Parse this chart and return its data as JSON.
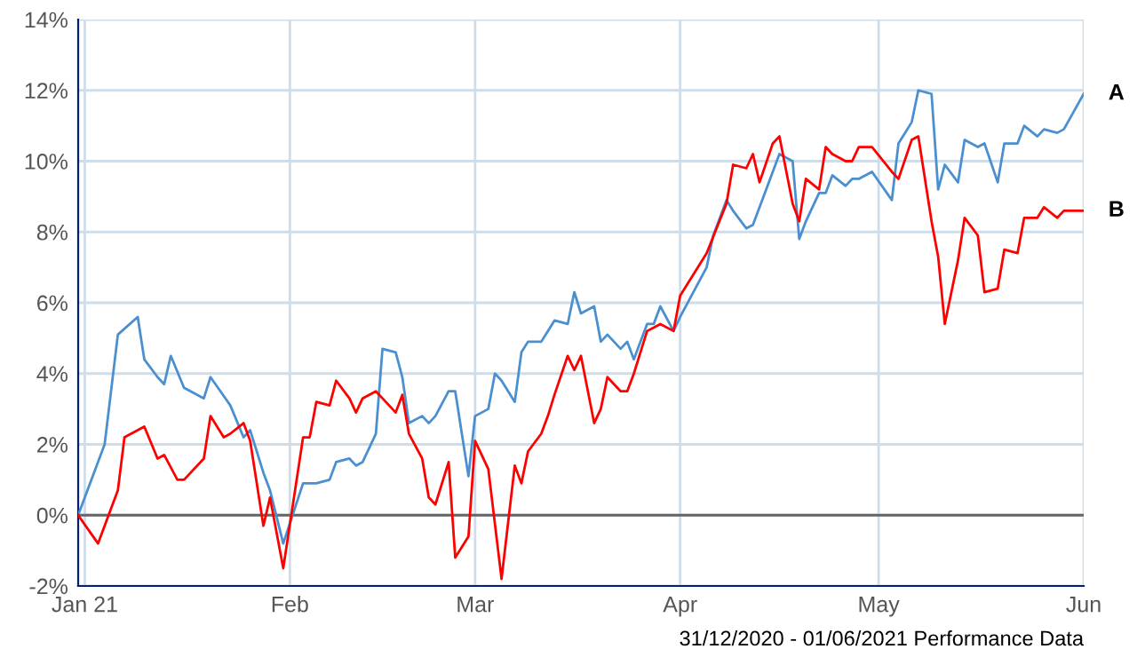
{
  "chart_data": {
    "type": "line",
    "annotations": [
      "31/12/2020 - 01/06/2021 Performance Data"
    ],
    "series": [
      {
        "name": "A",
        "color": "#4a8fd0",
        "x": [
          "2020-12-31",
          "2021-01-04",
          "2021-01-06",
          "2021-01-09",
          "2021-01-10",
          "2021-01-12",
          "2021-01-13",
          "2021-01-14",
          "2021-01-16",
          "2021-01-19",
          "2021-01-20",
          "2021-01-23",
          "2021-01-25",
          "2021-01-26",
          "2021-01-28",
          "2021-01-29",
          "2021-01-31",
          "2021-02-03",
          "2021-02-05",
          "2021-02-07",
          "2021-02-08",
          "2021-02-10",
          "2021-02-11",
          "2021-02-12",
          "2021-02-14",
          "2021-02-15",
          "2021-02-17",
          "2021-02-18",
          "2021-02-19",
          "2021-02-21",
          "2021-02-22",
          "2021-02-23",
          "2021-02-25",
          "2021-02-26",
          "2021-02-28",
          "2021-03-01",
          "2021-03-03",
          "2021-03-04",
          "2021-03-05",
          "2021-03-07",
          "2021-03-08",
          "2021-03-09",
          "2021-03-11",
          "2021-03-12",
          "2021-03-13",
          "2021-03-15",
          "2021-03-16",
          "2021-03-17",
          "2021-03-19",
          "2021-03-20",
          "2021-03-21",
          "2021-03-23",
          "2021-03-24",
          "2021-03-25",
          "2021-03-27",
          "2021-03-28",
          "2021-03-29",
          "2021-03-31",
          "2021-04-01",
          "2021-04-05",
          "2021-04-06",
          "2021-04-08",
          "2021-04-09",
          "2021-04-11",
          "2021-04-12",
          "2021-04-14",
          "2021-04-16",
          "2021-04-18",
          "2021-04-19",
          "2021-04-20",
          "2021-04-22",
          "2021-04-23",
          "2021-04-24",
          "2021-04-26",
          "2021-04-27",
          "2021-04-28",
          "2021-04-30",
          "2021-05-03",
          "2021-05-04",
          "2021-05-06",
          "2021-05-07",
          "2021-05-09",
          "2021-05-10",
          "2021-05-11",
          "2021-05-13",
          "2021-05-14",
          "2021-05-16",
          "2021-05-17",
          "2021-05-19",
          "2021-05-20",
          "2021-05-22",
          "2021-05-23",
          "2021-05-25",
          "2021-05-26",
          "2021-05-28",
          "2021-05-29",
          "2021-06-01"
        ],
        "values": [
          0,
          2.0,
          5.1,
          5.6,
          4.4,
          3.9,
          3.7,
          4.5,
          3.6,
          3.3,
          3.9,
          3.1,
          2.2,
          2.4,
          1.2,
          0.7,
          -0.8,
          0.9,
          0.9,
          1.0,
          1.5,
          1.6,
          1.4,
          1.5,
          2.3,
          4.7,
          4.6,
          3.9,
          2.6,
          2.8,
          2.6,
          2.8,
          3.5,
          3.5,
          1.1,
          2.8,
          3.0,
          4.0,
          3.8,
          3.2,
          4.6,
          4.9,
          4.9,
          5.2,
          5.5,
          5.4,
          6.3,
          5.7,
          5.9,
          4.9,
          5.1,
          4.7,
          4.9,
          4.4,
          5.4,
          5.4,
          5.9,
          5.2,
          5.6,
          7.0,
          7.9,
          8.9,
          8.6,
          8.1,
          8.2,
          9.2,
          10.2,
          10.0,
          7.8,
          8.3,
          9.1,
          9.1,
          9.6,
          9.3,
          9.5,
          9.5,
          9.7,
          8.9,
          10.5,
          11.1,
          12.0,
          11.9,
          9.2,
          9.9,
          9.4,
          10.6,
          10.4,
          10.5,
          9.4,
          10.5,
          10.5,
          11.0,
          10.7,
          10.9,
          10.8,
          10.9,
          11.9
        ]
      },
      {
        "name": "B",
        "color": "#ff0000",
        "x": [
          "2020-12-31",
          "2021-01-03",
          "2021-01-04",
          "2021-01-06",
          "2021-01-07",
          "2021-01-09",
          "2021-01-10",
          "2021-01-12",
          "2021-01-13",
          "2021-01-15",
          "2021-01-16",
          "2021-01-19",
          "2021-01-20",
          "2021-01-22",
          "2021-01-23",
          "2021-01-25",
          "2021-01-26",
          "2021-01-28",
          "2021-01-29",
          "2021-01-31",
          "2021-02-03",
          "2021-02-04",
          "2021-02-05",
          "2021-02-07",
          "2021-02-08",
          "2021-02-10",
          "2021-02-11",
          "2021-02-12",
          "2021-02-14",
          "2021-02-15",
          "2021-02-17",
          "2021-02-18",
          "2021-02-19",
          "2021-02-21",
          "2021-02-22",
          "2021-02-23",
          "2021-02-25",
          "2021-02-26",
          "2021-02-28",
          "2021-03-01",
          "2021-03-03",
          "2021-03-05",
          "2021-03-07",
          "2021-03-08",
          "2021-03-09",
          "2021-03-11",
          "2021-03-12",
          "2021-03-13",
          "2021-03-15",
          "2021-03-16",
          "2021-03-17",
          "2021-03-19",
          "2021-03-20",
          "2021-03-21",
          "2021-03-23",
          "2021-03-24",
          "2021-03-25",
          "2021-03-27",
          "2021-03-28",
          "2021-03-29",
          "2021-03-31",
          "2021-04-01",
          "2021-04-05",
          "2021-04-08",
          "2021-04-09",
          "2021-04-11",
          "2021-04-12",
          "2021-04-13",
          "2021-04-15",
          "2021-04-16",
          "2021-04-18",
          "2021-04-19",
          "2021-04-20",
          "2021-04-22",
          "2021-04-23",
          "2021-04-24",
          "2021-04-26",
          "2021-04-27",
          "2021-04-28",
          "2021-04-30",
          "2021-05-03",
          "2021-05-04",
          "2021-05-06",
          "2021-05-07",
          "2021-05-09",
          "2021-05-10",
          "2021-05-11",
          "2021-05-13",
          "2021-05-14",
          "2021-05-16",
          "2021-05-17",
          "2021-05-19",
          "2021-05-20",
          "2021-05-22",
          "2021-05-23",
          "2021-05-25",
          "2021-05-26",
          "2021-05-28",
          "2021-05-29",
          "2021-06-01"
        ],
        "values": [
          0,
          -0.8,
          -0.3,
          0.7,
          2.2,
          2.4,
          2.5,
          1.6,
          1.7,
          1.0,
          1.0,
          1.6,
          2.8,
          2.2,
          2.3,
          2.6,
          2.1,
          -0.3,
          0.5,
          -1.5,
          2.2,
          2.2,
          3.2,
          3.1,
          3.8,
          3.3,
          2.9,
          3.3,
          3.5,
          3.3,
          2.9,
          3.4,
          2.3,
          1.6,
          0.5,
          0.3,
          1.5,
          -1.2,
          -0.6,
          2.1,
          1.3,
          -1.8,
          1.4,
          0.9,
          1.8,
          2.3,
          2.8,
          3.4,
          4.5,
          4.1,
          4.5,
          2.6,
          3.0,
          3.9,
          3.5,
          3.5,
          4.0,
          5.2,
          5.3,
          5.4,
          5.2,
          6.2,
          7.4,
          8.8,
          9.9,
          9.8,
          10.2,
          9.4,
          10.5,
          10.7,
          8.8,
          8.3,
          9.5,
          9.2,
          10.4,
          10.2,
          10.0,
          10.0,
          10.4,
          10.4,
          9.7,
          9.5,
          10.6,
          10.7,
          8.3,
          7.3,
          5.4,
          7.2,
          8.4,
          7.9,
          6.3,
          6.4,
          7.5,
          7.4,
          8.4,
          8.4,
          8.7,
          8.4,
          8.6,
          8.6
        ]
      }
    ],
    "xlim": [
      "2020-12-31",
      "2021-06-01"
    ],
    "xticks": [
      {
        "value": "2021-01-01",
        "label": "Jan 21"
      },
      {
        "value": "2021-02-01",
        "label": "Feb"
      },
      {
        "value": "2021-03-01",
        "label": "Mar"
      },
      {
        "value": "2021-04-01",
        "label": "Apr"
      },
      {
        "value": "2021-05-01",
        "label": "May"
      },
      {
        "value": "2021-06-01",
        "label": "Jun"
      }
    ],
    "ylim": [
      -2,
      14
    ],
    "yticks": [
      {
        "value": -2,
        "label": "-2%"
      },
      {
        "value": 0,
        "label": "0%"
      },
      {
        "value": 2,
        "label": "2%"
      },
      {
        "value": 4,
        "label": "4%"
      },
      {
        "value": 6,
        "label": "6%"
      },
      {
        "value": 8,
        "label": "8%"
      },
      {
        "value": 10,
        "label": "10%"
      },
      {
        "value": 12,
        "label": "12%"
      },
      {
        "value": 14,
        "label": "14%"
      }
    ],
    "ref_lines": [
      {
        "axis": "y",
        "value": 0,
        "label": null,
        "color": "#666666"
      }
    ],
    "grid": true,
    "legend": false,
    "marker": "none",
    "line_style": "solid"
  }
}
